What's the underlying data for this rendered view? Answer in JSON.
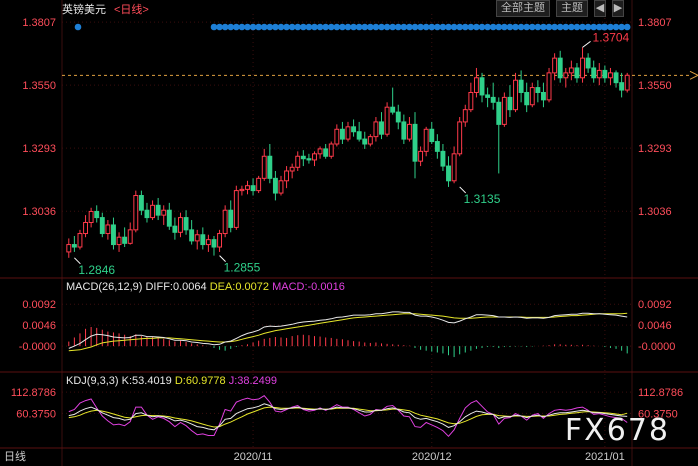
{
  "header": {
    "symbol": "英镑美元",
    "period_link": "<日线>",
    "all_themes_button": "全部主题",
    "theme_button": "主题"
  },
  "macd": {
    "title": "MACD(26,12,9)",
    "diff": "DIFF:0.0064",
    "dea": "DEA:0.0072",
    "macd": "MACD:-0.0016"
  },
  "kdj": {
    "title": "KDJ(9,3,3)",
    "k": "K:53.4019",
    "d": "D:60.9778",
    "j": "J:38.2499"
  },
  "footer": {
    "period": "日线",
    "watermark": "FX678"
  },
  "colors": {
    "up": "#ff3a4a",
    "down": "#2fd08a",
    "price_label": "#ff4d5a",
    "grid": "#3a0e0e",
    "dot": "#1e7fd6",
    "diff_line": "#e8e8e8",
    "dea_line": "#e6e62a",
    "j_line": "#e040e0"
  },
  "chart_data": [
    {
      "type": "candlestick",
      "title": "英镑美元<日线>",
      "y_ticks": [
        "1.3807",
        "1.3550",
        "1.3293",
        "1.3036"
      ],
      "ylim": [
        1.278,
        1.384
      ],
      "x_ticks": [
        {
          "label": "2020/11",
          "index": 33
        },
        {
          "label": "2020/12",
          "index": 65
        },
        {
          "label": "2021/01",
          "index": 96
        }
      ],
      "annotations": [
        {
          "text": "1.2846",
          "index": 1,
          "value": 1.2846
        },
        {
          "text": "1.2855",
          "index": 27,
          "value": 1.2855
        },
        {
          "text": "1.3135",
          "index": 70,
          "value": 1.3135
        },
        {
          "text": "1.3704",
          "index": 92,
          "value": 1.3704
        }
      ],
      "reference_line": 1.359,
      "dot_row_start_index": 26,
      "candles": [
        [
          1.287,
          1.2925,
          1.2846,
          1.29
        ],
        [
          1.29,
          1.2935,
          1.287,
          1.289
        ],
        [
          1.289,
          1.296,
          1.288,
          1.2945
        ],
        [
          1.2945,
          1.302,
          1.293,
          1.299
        ],
        [
          1.299,
          1.305,
          1.297,
          1.3035
        ],
        [
          1.3035,
          1.306,
          1.299,
          1.301
        ],
        [
          1.301,
          1.303,
          1.293,
          1.2945
        ],
        [
          1.2945,
          1.3,
          1.292,
          1.298
        ],
        [
          1.298,
          1.301,
          1.288,
          1.29
        ],
        [
          1.29,
          1.295,
          1.287,
          1.293
        ],
        [
          1.293,
          1.297,
          1.289,
          1.2905
        ],
        [
          1.2905,
          1.299,
          1.29,
          1.296
        ],
        [
          1.296,
          1.312,
          1.295,
          1.31
        ],
        [
          1.31,
          1.312,
          1.302,
          1.304
        ],
        [
          1.304,
          1.307,
          1.299,
          1.301
        ],
        [
          1.301,
          1.308,
          1.3,
          1.306
        ],
        [
          1.306,
          1.309,
          1.3,
          1.302
        ],
        [
          1.302,
          1.306,
          1.298,
          1.304
        ],
        [
          1.304,
          1.307,
          1.296,
          1.2975
        ],
        [
          1.2975,
          1.301,
          1.292,
          1.295
        ],
        [
          1.295,
          1.303,
          1.293,
          1.301
        ],
        [
          1.301,
          1.304,
          1.294,
          1.296
        ],
        [
          1.296,
          1.3,
          1.29,
          1.2915
        ],
        [
          1.2915,
          1.296,
          1.288,
          1.294
        ],
        [
          1.294,
          1.297,
          1.288,
          1.29
        ],
        [
          1.29,
          1.294,
          1.287,
          1.292
        ],
        [
          1.292,
          1.2935,
          1.2855,
          1.289
        ],
        [
          1.289,
          1.296,
          1.287,
          1.2945
        ],
        [
          1.2945,
          1.306,
          1.293,
          1.304
        ],
        [
          1.304,
          1.308,
          1.295,
          1.297
        ],
        [
          1.297,
          1.314,
          1.296,
          1.312
        ],
        [
          1.312,
          1.314,
          1.31,
          1.3125
        ],
        [
          1.3125,
          1.316,
          1.3105,
          1.314
        ],
        [
          1.314,
          1.317,
          1.31,
          1.312
        ],
        [
          1.312,
          1.318,
          1.311,
          1.317
        ],
        [
          1.317,
          1.329,
          1.316,
          1.326
        ],
        [
          1.326,
          1.331,
          1.315,
          1.317
        ],
        [
          1.317,
          1.32,
          1.308,
          1.311
        ],
        [
          1.311,
          1.318,
          1.31,
          1.316
        ],
        [
          1.316,
          1.322,
          1.313,
          1.32
        ],
        [
          1.32,
          1.323,
          1.317,
          1.3215
        ],
        [
          1.3215,
          1.328,
          1.32,
          1.326
        ],
        [
          1.326,
          1.3285,
          1.322,
          1.325
        ],
        [
          1.325,
          1.327,
          1.323,
          1.3245
        ],
        [
          1.3245,
          1.328,
          1.322,
          1.327
        ],
        [
          1.327,
          1.33,
          1.325,
          1.329
        ],
        [
          1.329,
          1.331,
          1.325,
          1.326
        ],
        [
          1.326,
          1.332,
          1.325,
          1.331
        ],
        [
          1.331,
          1.339,
          1.33,
          1.337
        ],
        [
          1.337,
          1.34,
          1.331,
          1.333
        ],
        [
          1.333,
          1.34,
          1.332,
          1.338
        ],
        [
          1.338,
          1.341,
          1.334,
          1.336
        ],
        [
          1.336,
          1.34,
          1.332,
          1.333
        ],
        [
          1.333,
          1.336,
          1.329,
          1.331
        ],
        [
          1.331,
          1.335,
          1.33,
          1.334
        ],
        [
          1.334,
          1.342,
          1.332,
          1.34
        ],
        [
          1.34,
          1.344,
          1.333,
          1.335
        ],
        [
          1.335,
          1.348,
          1.334,
          1.346
        ],
        [
          1.346,
          1.354,
          1.343,
          1.344
        ],
        [
          1.344,
          1.347,
          1.337,
          1.34
        ],
        [
          1.34,
          1.343,
          1.331,
          1.333
        ],
        [
          1.333,
          1.342,
          1.332,
          1.339
        ],
        [
          1.339,
          1.344,
          1.317,
          1.324
        ],
        [
          1.324,
          1.33,
          1.322,
          1.328
        ],
        [
          1.328,
          1.338,
          1.326,
          1.337
        ],
        [
          1.337,
          1.34,
          1.331,
          1.332
        ],
        [
          1.332,
          1.335,
          1.325,
          1.328
        ],
        [
          1.328,
          1.331,
          1.32,
          1.322
        ],
        [
          1.322,
          1.326,
          1.3135,
          1.316
        ],
        [
          1.316,
          1.33,
          1.315,
          1.327
        ],
        [
          1.327,
          1.342,
          1.326,
          1.34
        ],
        [
          1.34,
          1.347,
          1.338,
          1.345
        ],
        [
          1.345,
          1.356,
          1.344,
          1.352
        ],
        [
          1.352,
          1.362,
          1.35,
          1.358
        ],
        [
          1.358,
          1.36,
          1.348,
          1.351
        ],
        [
          1.351,
          1.354,
          1.346,
          1.35
        ],
        [
          1.35,
          1.356,
          1.345,
          1.348
        ],
        [
          1.348,
          1.35,
          1.319,
          1.339
        ],
        [
          1.339,
          1.352,
          1.338,
          1.35
        ],
        [
          1.35,
          1.355,
          1.342,
          1.345
        ],
        [
          1.345,
          1.36,
          1.344,
          1.357
        ],
        [
          1.357,
          1.361,
          1.348,
          1.352
        ],
        [
          1.352,
          1.356,
          1.344,
          1.347
        ],
        [
          1.347,
          1.356,
          1.346,
          1.354
        ],
        [
          1.354,
          1.357,
          1.348,
          1.352
        ],
        [
          1.352,
          1.356,
          1.346,
          1.349
        ],
        [
          1.349,
          1.362,
          1.348,
          1.36
        ],
        [
          1.36,
          1.368,
          1.357,
          1.366
        ],
        [
          1.366,
          1.369,
          1.356,
          1.358
        ],
        [
          1.358,
          1.362,
          1.354,
          1.36
        ],
        [
          1.36,
          1.365,
          1.357,
          1.362
        ],
        [
          1.362,
          1.364,
          1.356,
          1.358
        ],
        [
          1.358,
          1.3704,
          1.356,
          1.366
        ],
        [
          1.366,
          1.368,
          1.36,
          1.362
        ],
        [
          1.362,
          1.365,
          1.356,
          1.358
        ],
        [
          1.358,
          1.364,
          1.355,
          1.361
        ],
        [
          1.361,
          1.363,
          1.356,
          1.358
        ],
        [
          1.358,
          1.362,
          1.355,
          1.36
        ],
        [
          1.36,
          1.361,
          1.354,
          1.356
        ],
        [
          1.356,
          1.36,
          1.35,
          1.353
        ],
        [
          1.353,
          1.36,
          1.352,
          1.359
        ]
      ]
    },
    {
      "type": "bar+line",
      "title": "MACD(26,12,9)",
      "y_ticks": [
        "0.0092",
        "0.0046",
        "-0.0000"
      ],
      "ylim": [
        -0.0048,
        0.011
      ],
      "macd_hist": [
        0.001,
        0.0019,
        0.0028,
        0.0038,
        0.0042,
        0.004,
        0.0036,
        0.0032,
        0.003,
        0.0028,
        0.0025,
        0.0022,
        0.0026,
        0.0022,
        0.002,
        0.0021,
        0.0018,
        0.0016,
        0.0013,
        0.001,
        0.0012,
        0.0009,
        0.0006,
        0.0004,
        0.0002,
        0.0,
        -0.0004,
        -0.0008,
        -0.001,
        -0.0006,
        -0.0002,
        0.0002,
        0.0004,
        0.0008,
        0.0012,
        0.0016,
        0.0018,
        0.002,
        0.0019,
        0.0018,
        0.0022,
        0.0024,
        0.0025,
        0.0024,
        0.0022,
        0.0021,
        0.0019,
        0.0018,
        0.0016,
        0.0015,
        0.0013,
        0.0011,
        0.001,
        0.0008,
        0.0007,
        0.0008,
        0.0006,
        0.0005,
        0.0004,
        0.0003,
        0.0002,
        0.0001,
        -0.0004,
        -0.0008,
        -0.001,
        -0.0012,
        -0.0014,
        -0.0016,
        -0.002,
        -0.0024,
        -0.0018,
        -0.0014,
        -0.001,
        -0.0006,
        -0.0004,
        -0.0002,
        -0.0002,
        -0.0004,
        -0.0002,
        -0.0002,
        -0.0001,
        -0.0001,
        -0.0002,
        -0.0001,
        0.0,
        0.0001,
        0.0002,
        0.0004,
        0.0004,
        0.0003,
        0.0003,
        0.0002,
        0.0003,
        0.0002,
        0.0001,
        0.0,
        -0.0002,
        -0.0004,
        -0.0006,
        -0.001,
        -0.0016
      ],
      "diff": [
        -0.0005,
        0.0,
        0.0006,
        0.0014,
        0.0022,
        0.0026,
        0.0025,
        0.0023,
        0.002,
        0.0019,
        0.0018,
        0.0019,
        0.0024,
        0.0024,
        0.0021,
        0.0021,
        0.002,
        0.0019,
        0.0016,
        0.0013,
        0.0013,
        0.0012,
        0.0009,
        0.0008,
        0.0006,
        0.0005,
        0.0003,
        0.0004,
        0.0009,
        0.0011,
        0.0017,
        0.0023,
        0.0028,
        0.0031,
        0.0035,
        0.0042,
        0.0044,
        0.0043,
        0.0044,
        0.0046,
        0.0048,
        0.0051,
        0.0053,
        0.0054,
        0.0055,
        0.0057,
        0.0058,
        0.006,
        0.0063,
        0.0064,
        0.0066,
        0.0068,
        0.0068,
        0.0068,
        0.0069,
        0.0071,
        0.0071,
        0.0073,
        0.0075,
        0.0075,
        0.0074,
        0.0074,
        0.0068,
        0.0066,
        0.0066,
        0.0064,
        0.0061,
        0.0057,
        0.0052,
        0.0051,
        0.0055,
        0.006,
        0.0064,
        0.0069,
        0.0069,
        0.0068,
        0.0067,
        0.0064,
        0.0064,
        0.0063,
        0.0064,
        0.0063,
        0.0061,
        0.0062,
        0.0062,
        0.0061,
        0.0063,
        0.0067,
        0.0068,
        0.0069,
        0.007,
        0.007,
        0.0072,
        0.0072,
        0.0071,
        0.0071,
        0.007,
        0.0069,
        0.0068,
        0.0066,
        0.0064
      ],
      "dea": [
        -0.001,
        -0.0009,
        -0.0008,
        -0.0005,
        -0.0002,
        0.0003,
        0.0007,
        0.0009,
        0.0011,
        0.0012,
        0.0013,
        0.0014,
        0.0015,
        0.0016,
        0.0017,
        0.0017,
        0.0018,
        0.0018,
        0.0018,
        0.0017,
        0.0016,
        0.0015,
        0.0014,
        0.0013,
        0.0012,
        0.0011,
        0.001,
        0.0009,
        0.0009,
        0.001,
        0.0012,
        0.0015,
        0.0018,
        0.0021,
        0.0024,
        0.0028,
        0.0031,
        0.0034,
        0.0036,
        0.0038,
        0.004,
        0.0042,
        0.0044,
        0.0046,
        0.0048,
        0.005,
        0.0052,
        0.0054,
        0.0056,
        0.0058,
        0.006,
        0.0062,
        0.0063,
        0.0064,
        0.0065,
        0.0066,
        0.0067,
        0.0068,
        0.0069,
        0.007,
        0.0071,
        0.0071,
        0.0071,
        0.007,
        0.0069,
        0.0068,
        0.0067,
        0.0066,
        0.0064,
        0.0062,
        0.0061,
        0.0061,
        0.0061,
        0.0062,
        0.0063,
        0.0064,
        0.0064,
        0.0064,
        0.0064,
        0.0064,
        0.0064,
        0.0064,
        0.0063,
        0.0063,
        0.0063,
        0.0063,
        0.0063,
        0.0064,
        0.0065,
        0.0066,
        0.0067,
        0.0067,
        0.0068,
        0.0069,
        0.007,
        0.0071,
        0.0071,
        0.0071,
        0.0071,
        0.0071,
        0.0072
      ]
    },
    {
      "type": "line",
      "title": "KDJ(9,3,3)",
      "y_ticks": [
        "112.8786",
        "60.3750"
      ],
      "ylim": [
        -15,
        128
      ],
      "k": [
        55,
        58,
        66,
        72,
        76,
        70,
        62,
        56,
        50,
        48,
        44,
        46,
        60,
        62,
        56,
        52,
        54,
        52,
        48,
        42,
        44,
        40,
        34,
        28,
        26,
        22,
        20,
        30,
        46,
        48,
        60,
        66,
        72,
        74,
        78,
        84,
        80,
        72,
        70,
        72,
        74,
        76,
        72,
        70,
        70,
        72,
        70,
        72,
        76,
        74,
        74,
        72,
        68,
        64,
        64,
        68,
        68,
        72,
        74,
        70,
        64,
        62,
        50,
        46,
        48,
        44,
        40,
        34,
        26,
        30,
        40,
        52,
        60,
        66,
        64,
        60,
        58,
        48,
        52,
        52,
        56,
        54,
        50,
        54,
        56,
        52,
        56,
        60,
        62,
        62,
        64,
        66,
        68,
        66,
        62,
        62,
        60,
        58,
        56,
        54,
        53
      ],
      "d": [
        50,
        52,
        56,
        62,
        66,
        68,
        66,
        63,
        59,
        55,
        51,
        49,
        52,
        55,
        56,
        55,
        55,
        54,
        52,
        49,
        47,
        45,
        42,
        38,
        34,
        30,
        27,
        28,
        34,
        39,
        46,
        52,
        59,
        64,
        69,
        74,
        76,
        75,
        73,
        73,
        73,
        74,
        73,
        72,
        71,
        71,
        71,
        71,
        73,
        73,
        73,
        73,
        71,
        69,
        67,
        67,
        68,
        69,
        71,
        71,
        69,
        67,
        61,
        56,
        53,
        50,
        47,
        42,
        37,
        35,
        36,
        41,
        47,
        53,
        57,
        58,
        58,
        55,
        54,
        53,
        54,
        54,
        53,
        53,
        54,
        54,
        54,
        56,
        58,
        59,
        61,
        62,
        64,
        65,
        64,
        63,
        62,
        61,
        59,
        57,
        61
      ],
      "j": [
        65,
        70,
        86,
        92,
        96,
        74,
        54,
        42,
        32,
        34,
        30,
        40,
        76,
        76,
        56,
        46,
        52,
        48,
        40,
        28,
        38,
        30,
        18,
        8,
        10,
        6,
        6,
        34,
        70,
        66,
        88,
        94,
        98,
        94,
        96,
        104,
        88,
        66,
        64,
        70,
        76,
        80,
        70,
        66,
        68,
        74,
        68,
        74,
        82,
        76,
        76,
        70,
        62,
        54,
        58,
        70,
        68,
        78,
        80,
        68,
        54,
        52,
        28,
        26,
        38,
        32,
        26,
        18,
        4,
        20,
        48,
        74,
        86,
        92,
        78,
        64,
        58,
        34,
        48,
        50,
        60,
        54,
        44,
        56,
        60,
        48,
        60,
        68,
        70,
        68,
        70,
        74,
        76,
        68,
        58,
        60,
        56,
        52,
        50,
        48,
        38
      ]
    }
  ]
}
